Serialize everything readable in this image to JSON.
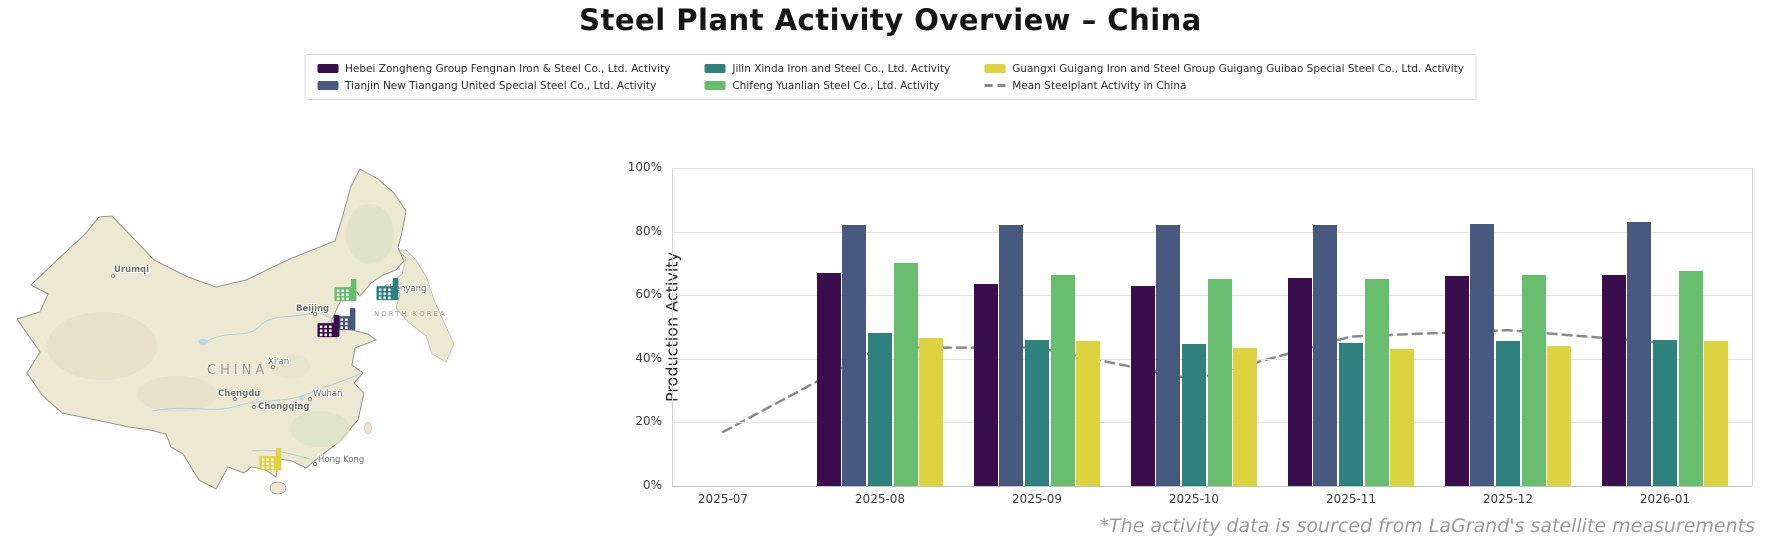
{
  "title": "Steel Plant Activity Overview – China",
  "footnote": "*The activity data is sourced from LaGrand's satellite measurements",
  "chart_data": {
    "type": "bar",
    "categories": [
      "2025-07",
      "2025-08",
      "2025-09",
      "2025-10",
      "2025-11",
      "2025-12",
      "2026-01"
    ],
    "series": [
      {
        "name": "Hebei Zongheng Group Fengnan Iron & Steel Co., Ltd. Activity",
        "color": "#3a0d4d",
        "values": [
          null,
          67,
          63.5,
          63,
          65.5,
          66,
          66.5
        ]
      },
      {
        "name": "Tianjin New Tiangang United Special Steel Co., Ltd. Activity",
        "color": "#47597f",
        "values": [
          null,
          82,
          82,
          82,
          82,
          82.5,
          83
        ]
      },
      {
        "name": "Jilin Xinda Iron and Steel Co., Ltd. Activity",
        "color": "#2f817d",
        "values": [
          null,
          48,
          46,
          44.5,
          45,
          45.5,
          46
        ]
      },
      {
        "name": "Chifeng Yuanlian Steel Co., Ltd. Activity",
        "color": "#68bd6e",
        "values": [
          null,
          70,
          66.5,
          65,
          65,
          66.5,
          67.5
        ]
      },
      {
        "name": "Guangxi Guigang Iron and Steel Group Guigang Guibao Special Steel Co., Ltd. Activity",
        "color": "#ddd23f",
        "values": [
          null,
          46.5,
          45.5,
          43.5,
          43,
          44,
          45.5
        ]
      }
    ],
    "mean_line": {
      "name": "Mean Steelplant Activity in China",
      "color": "#8a8a8a",
      "values": [
        17,
        43.5,
        43.5,
        33.5,
        47,
        49,
        45
      ]
    },
    "title": "",
    "xlabel": "",
    "ylabel": "Production Activity",
    "yticks": [
      "0%",
      "20%",
      "40%",
      "60%",
      "80%",
      "100%"
    ],
    "ylim": [
      0,
      100
    ],
    "grid": true,
    "legend_position": "top-center"
  },
  "map": {
    "country_label": "CHINA",
    "region_label": "NORTH KOREA",
    "cities": [
      {
        "name": "Urumqi"
      },
      {
        "name": "Beijing"
      },
      {
        "name": "Xi'an"
      },
      {
        "name": "Chengdu"
      },
      {
        "name": "Chongqing"
      },
      {
        "name": "Wuhan"
      },
      {
        "name": "Hong Kong"
      },
      {
        "name": "Shenyang"
      }
    ],
    "markers": [
      {
        "name": "Tianjin New Tiangang United Special Steel Co., Ltd.",
        "color": "#47597f"
      },
      {
        "name": "Hebei Zongheng Group Fengnan Iron & Steel Co., Ltd.",
        "color": "#3a0d4d"
      },
      {
        "name": "Chifeng Yuanlian Steel Co., Ltd.",
        "color": "#68bd6e"
      },
      {
        "name": "Jilin Xinda Iron and Steel Co., Ltd.",
        "color": "#2f817d"
      },
      {
        "name": "Guangxi Guigang Iron and Steel Group Guigang Guibao Special Steel Co., Ltd.",
        "color": "#ddd23f"
      }
    ],
    "land_color": "#ece8d1",
    "border_color": "#97968b"
  }
}
